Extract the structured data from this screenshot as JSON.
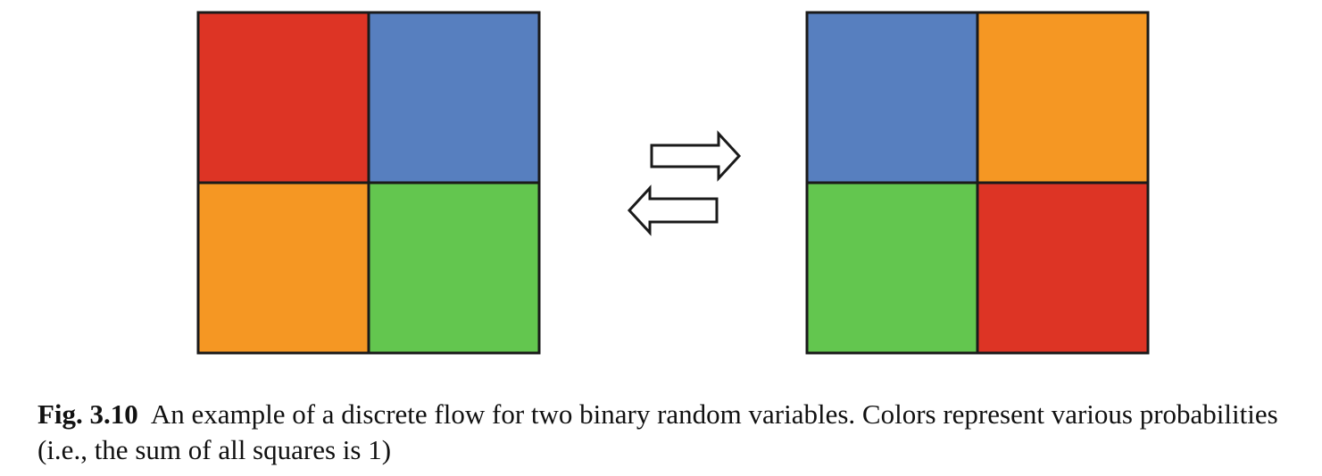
{
  "colors": {
    "red": "#dd3425",
    "blue": "#577fbf",
    "orange": "#f59723",
    "green": "#63c64f",
    "outline": "#1a1a1a"
  },
  "grids": [
    {
      "cells": [
        {
          "position": "top-left",
          "color": "red"
        },
        {
          "position": "top-right",
          "color": "blue"
        },
        {
          "position": "bottom-left",
          "color": "orange"
        },
        {
          "position": "bottom-right",
          "color": "green"
        }
      ]
    },
    {
      "cells": [
        {
          "position": "top-left",
          "color": "blue"
        },
        {
          "position": "top-right",
          "color": "orange"
        },
        {
          "position": "bottom-left",
          "color": "green"
        },
        {
          "position": "bottom-right",
          "color": "red"
        }
      ]
    }
  ],
  "arrows": [
    {
      "direction": "right",
      "icon": "arrow-right-icon"
    },
    {
      "direction": "left",
      "icon": "arrow-left-icon"
    }
  ],
  "caption": {
    "label": "Fig. 3.10",
    "text": "An example of a discrete flow for two binary random variables. Colors represent various probabilities (i.e., the sum of all squares is 1)"
  }
}
